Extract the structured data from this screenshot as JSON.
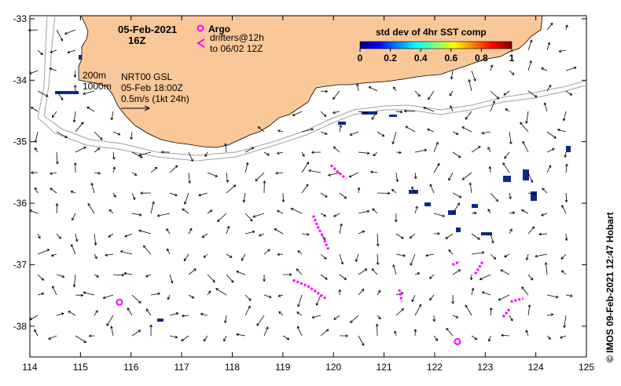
{
  "map": {
    "x_ticks": [
      "114",
      "115",
      "116",
      "117",
      "118",
      "119",
      "120",
      "121",
      "122",
      "123",
      "124",
      "125"
    ],
    "y_ticks": [
      "-33",
      "-34",
      "-35",
      "-36",
      "-37",
      "-38"
    ],
    "lon_range": [
      114,
      125
    ],
    "lat_range": [
      -38.5,
      -32.95
    ]
  },
  "header": {
    "date": "05-Feb-2021",
    "time": "16Z"
  },
  "legend": {
    "argo_label": "Argo",
    "drifter_line1": "drifters@12h",
    "drifter_line2": "to 06/02 12Z"
  },
  "isobaths": {
    "label_200": "200m",
    "label_1000": "1000m"
  },
  "current_info": {
    "line1": "NRT00 GSL",
    "line2": "05-Feb 18:00Z",
    "scale_label": "0.5m/s (1kt 24h)"
  },
  "colorbar": {
    "title": "std dev of 4hr SST comp",
    "tick_labels": [
      "0",
      "0.2",
      "0.4",
      "0.6",
      "0.8",
      "1"
    ]
  },
  "credit": "© IMOS 09-Feb-2021 12:47 Hobart",
  "argo_floats": [
    {
      "lon": 115.77,
      "lat": -37.61
    },
    {
      "lon": 122.45,
      "lat": -38.25
    }
  ],
  "drifter_tracks": [
    [
      [
        119.95,
        -35.38
      ],
      [
        120.1,
        -35.5
      ],
      [
        120.25,
        -35.6
      ]
    ],
    [
      [
        119.6,
        -36.2
      ],
      [
        119.7,
        -36.4
      ],
      [
        119.8,
        -36.55
      ]
    ],
    [
      [
        119.82,
        -36.6
      ],
      [
        119.9,
        -36.75
      ]
    ],
    [
      [
        119.2,
        -37.25
      ],
      [
        119.5,
        -37.35
      ],
      [
        119.85,
        -37.55
      ]
    ],
    [
      [
        121.3,
        -37.4
      ],
      [
        121.35,
        -37.6
      ]
    ],
    [
      [
        122.35,
        -37.0
      ],
      [
        122.5,
        -36.95
      ]
    ],
    [
      [
        122.8,
        -37.15
      ],
      [
        122.95,
        -36.95
      ]
    ],
    [
      [
        123.5,
        -37.6
      ],
      [
        123.75,
        -37.55
      ]
    ],
    [
      [
        123.35,
        -37.85
      ],
      [
        123.5,
        -37.7
      ]
    ]
  ],
  "colors": {
    "land": "#fac898",
    "argo": "#ff00ff",
    "drifter": "#ff00ff",
    "isobath": "#a0a0a0",
    "sst_patch": "#0a2a8a"
  }
}
